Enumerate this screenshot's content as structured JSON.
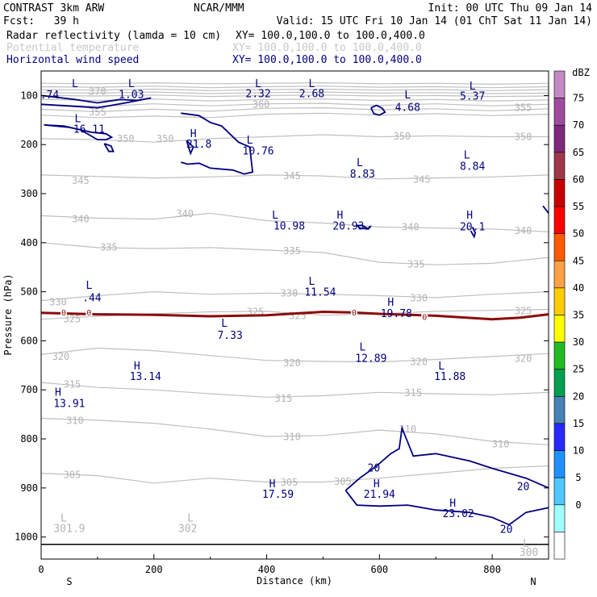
{
  "header": {
    "model": "CONTRAST  3km ARW",
    "org": "NCAR/MMM",
    "init": "Init: 00 UTC Thu 09 Jan 14",
    "fcst": "Fcst:   39 h",
    "valid": "Valid: 15 UTC Fri 10 Jan 14 (01 ChT Sat 11 Jan 14)"
  },
  "fields": [
    {
      "label": "Radar reflectivity (lamda = 10 cm)",
      "xy": "XY= 100.0,100.0 to 100.0,400.0",
      "color": "#000000"
    },
    {
      "label": "Potential temperature",
      "xy": "XY= 100.0,100.0 to 100.0,400.0",
      "color": "#b4b4b4"
    },
    {
      "label": "Horizontal wind speed",
      "xy": "XY= 100.0,100.0 to 100.0,400.0",
      "color": "#000080"
    }
  ],
  "chart_data": {
    "type": "cross-section",
    "xlabel": "Distance (km)",
    "ylabel": "Pressure (hPa)",
    "xlim": [
      0,
      900
    ],
    "ylim": [
      1045,
      50
    ],
    "x_ticks": [
      0,
      200,
      400,
      600,
      800
    ],
    "y_ticks": [
      100,
      200,
      300,
      400,
      500,
      600,
      700,
      800,
      900,
      1000
    ],
    "end_labels": {
      "left": "S",
      "right": "N"
    },
    "colorbar": {
      "unit": "dBZ",
      "levels": [
        75,
        70,
        65,
        60,
        55,
        50,
        45,
        40,
        35,
        30,
        25,
        20,
        15,
        10,
        5,
        0
      ],
      "colors": [
        "#c38ac3",
        "#a04ba0",
        "#7f2a7f",
        "#a0374b",
        "#c80000",
        "#ff0000",
        "#ff5a00",
        "#ffa046",
        "#ffcc00",
        "#ffff00",
        "#22bb22",
        "#00a050",
        "#4682b4",
        "#2828ff",
        "#1e90ff",
        "#50c8ff",
        "#a0ffff",
        "#ffffff"
      ]
    },
    "theta_labels": [
      {
        "text": "370",
        "x": 100,
        "p": 92
      },
      {
        "text": "360",
        "x": 390,
        "p": 118
      },
      {
        "text": "355",
        "x": 100,
        "p": 134
      },
      {
        "text": "355",
        "x": 855,
        "p": 125
      },
      {
        "text": "350",
        "x": 150,
        "p": 188
      },
      {
        "text": "350",
        "x": 220,
        "p": 188
      },
      {
        "text": "350",
        "x": 640,
        "p": 183
      },
      {
        "text": "350",
        "x": 855,
        "p": 184
      },
      {
        "text": "345",
        "x": 70,
        "p": 274
      },
      {
        "text": "345",
        "x": 445,
        "p": 264
      },
      {
        "text": "345",
        "x": 675,
        "p": 271
      },
      {
        "text": "340",
        "x": 70,
        "p": 352
      },
      {
        "text": "340",
        "x": 255,
        "p": 341
      },
      {
        "text": "340",
        "x": 655,
        "p": 368
      },
      {
        "text": "340",
        "x": 855,
        "p": 376
      },
      {
        "text": "335",
        "x": 120,
        "p": 409
      },
      {
        "text": "335",
        "x": 445,
        "p": 417
      },
      {
        "text": "335",
        "x": 665,
        "p": 444
      },
      {
        "text": "330",
        "x": 30,
        "p": 521
      },
      {
        "text": "330",
        "x": 440,
        "p": 503
      },
      {
        "text": "330",
        "x": 670,
        "p": 513
      },
      {
        "text": "325",
        "x": 55,
        "p": 556
      },
      {
        "text": "325",
        "x": 380,
        "p": 541
      },
      {
        "text": "325",
        "x": 455,
        "p": 549
      },
      {
        "text": "325",
        "x": 855,
        "p": 539
      },
      {
        "text": "320",
        "x": 35,
        "p": 632
      },
      {
        "text": "320",
        "x": 445,
        "p": 645
      },
      {
        "text": "320",
        "x": 670,
        "p": 643
      },
      {
        "text": "320",
        "x": 855,
        "p": 636
      },
      {
        "text": "315",
        "x": 55,
        "p": 689
      },
      {
        "text": "315",
        "x": 430,
        "p": 718
      },
      {
        "text": "315",
        "x": 660,
        "p": 706
      },
      {
        "text": "310",
        "x": 60,
        "p": 763
      },
      {
        "text": "310",
        "x": 445,
        "p": 796
      },
      {
        "text": "310",
        "x": 650,
        "p": 780
      },
      {
        "text": "310",
        "x": 815,
        "p": 811
      },
      {
        "text": "305",
        "x": 55,
        "p": 873
      },
      {
        "text": "305",
        "x": 440,
        "p": 889
      },
      {
        "text": "305",
        "x": 535,
        "p": 887
      }
    ],
    "theta_lines": [
      {
        "p": [
          75,
          76,
          74,
          76,
          75,
          74,
          76,
          75,
          77,
          75
        ]
      },
      {
        "p": [
          82,
          83,
          81,
          84,
          82,
          81,
          83,
          82,
          84,
          82
        ]
      },
      {
        "p": [
          88,
          89,
          87,
          90,
          88,
          87,
          89,
          88,
          90,
          88
        ]
      },
      {
        "p": [
          94,
          95,
          93,
          96,
          94,
          93,
          95,
          94,
          96,
          95
        ]
      },
      {
        "p": [
          100,
          101,
          99,
          102,
          100,
          99,
          101,
          100,
          102,
          101
        ]
      },
      {
        "p": [
          108,
          110,
          107,
          111,
          108,
          107,
          110,
          108,
          111,
          109
        ]
      },
      {
        "p": [
          118,
          122,
          117,
          121,
          117,
          116,
          120,
          117,
          121,
          118
        ]
      },
      {
        "p": [
          128,
          133,
          128,
          132,
          126,
          125,
          129,
          127,
          131,
          127
        ]
      },
      {
        "p": [
          140,
          145,
          142,
          145,
          138,
          136,
          140,
          137,
          141,
          138
        ]
      },
      {
        "p": [
          188,
          190,
          195,
          188,
          184,
          180,
          184,
          182,
          184,
          184
        ]
      },
      {
        "p": [
          262,
          265,
          268,
          266,
          262,
          264,
          270,
          268,
          266,
          262
        ]
      },
      {
        "p": [
          345,
          350,
          352,
          340,
          355,
          360,
          368,
          370,
          372,
          378
        ]
      },
      {
        "p": [
          400,
          410,
          412,
          410,
          415,
          420,
          440,
          445,
          442,
          430
        ]
      },
      {
        "p": [
          518,
          508,
          500,
          505,
          503,
          505,
          508,
          512,
          505,
          500
        ]
      },
      {
        "p": [
          556,
          550,
          545,
          541,
          540,
          548,
          545,
          540,
          538,
          536
        ]
      },
      {
        "p": [
          628,
          615,
          620,
          630,
          640,
          642,
          643,
          638,
          632,
          626
        ]
      },
      {
        "p": [
          685,
          695,
          700,
          708,
          715,
          712,
          705,
          708,
          710,
          705
        ]
      },
      {
        "p": [
          758,
          762,
          768,
          780,
          795,
          793,
          782,
          790,
          805,
          812
        ]
      },
      {
        "p": [
          870,
          875,
          890,
          880,
          888,
          888,
          880,
          870,
          860,
          855
        ]
      }
    ],
    "wind_labels": [
      {
        "text": ".74",
        "x": 15,
        "p": 98
      },
      {
        "text": "1.03",
        "x": 160,
        "p": 97
      },
      {
        "text": "2.32",
        "x": 385,
        "p": 95
      },
      {
        "text": "2.68",
        "x": 480,
        "p": 95
      },
      {
        "text": "4.68",
        "x": 650,
        "p": 123
      },
      {
        "text": "5.37",
        "x": 765,
        "p": 100
      },
      {
        "text": "16.11",
        "x": 85,
        "p": 168
      },
      {
        "text": "21.8",
        "x": 280,
        "p": 198
      },
      {
        "text": "10.76",
        "x": 385,
        "p": 212
      },
      {
        "text": "8.83",
        "x": 570,
        "p": 259
      },
      {
        "text": "8.84",
        "x": 765,
        "p": 243
      },
      {
        "text": "10.98",
        "x": 440,
        "p": 365
      },
      {
        "text": "20.93",
        "x": 545,
        "p": 365
      },
      {
        "text": "20.1",
        "x": 765,
        "p": 367
      },
      {
        "text": ".44",
        "x": 90,
        "p": 511
      },
      {
        "text": "11.54",
        "x": 495,
        "p": 500
      },
      {
        "text": "19.78",
        "x": 630,
        "p": 543
      },
      {
        "text": "7.33",
        "x": 335,
        "p": 588
      },
      {
        "text": "12.89",
        "x": 585,
        "p": 635
      },
      {
        "text": "13.14",
        "x": 185,
        "p": 672
      },
      {
        "text": "11.88",
        "x": 725,
        "p": 672
      },
      {
        "text": "13.91",
        "x": 50,
        "p": 727
      },
      {
        "text": "17.59",
        "x": 420,
        "p": 912
      },
      {
        "text": "21.94",
        "x": 600,
        "p": 912
      },
      {
        "text": "23.02",
        "x": 740,
        "p": 951
      },
      {
        "text": "20",
        "x": 590,
        "p": 858
      },
      {
        "text": "20",
        "x": 855,
        "p": 896
      },
      {
        "text": "20",
        "x": 825,
        "p": 983
      }
    ],
    "hl_marks": [
      {
        "text": "L",
        "x": 60,
        "p": 75
      },
      {
        "text": "L",
        "x": 160,
        "p": 75
      },
      {
        "text": "L",
        "x": 385,
        "p": 75
      },
      {
        "text": "L",
        "x": 480,
        "p": 75
      },
      {
        "text": "L",
        "x": 650,
        "p": 98
      },
      {
        "text": "L",
        "x": 765,
        "p": 80
      },
      {
        "text": "L",
        "x": 65,
        "p": 146
      },
      {
        "text": "H",
        "x": 270,
        "p": 177
      },
      {
        "text": "L",
        "x": 370,
        "p": 190
      },
      {
        "text": "L",
        "x": 565,
        "p": 236
      },
      {
        "text": "L",
        "x": 755,
        "p": 220
      },
      {
        "text": "L",
        "x": 415,
        "p": 343
      },
      {
        "text": "H",
        "x": 530,
        "p": 343
      },
      {
        "text": "H",
        "x": 760,
        "p": 343
      },
      {
        "text": "L",
        "x": 85,
        "p": 486
      },
      {
        "text": "L",
        "x": 480,
        "p": 478
      },
      {
        "text": "H",
        "x": 620,
        "p": 520
      },
      {
        "text": "L",
        "x": 325,
        "p": 563
      },
      {
        "text": "L",
        "x": 570,
        "p": 612
      },
      {
        "text": "H",
        "x": 170,
        "p": 650
      },
      {
        "text": "L",
        "x": 710,
        "p": 650
      },
      {
        "text": "H",
        "x": 30,
        "p": 704
      },
      {
        "text": "H",
        "x": 410,
        "p": 890
      },
      {
        "text": "H",
        "x": 595,
        "p": 890
      },
      {
        "text": "H",
        "x": 730,
        "p": 930
      },
      {
        "text": "L",
        "x": 40,
        "p": 960
      },
      {
        "text": "L",
        "x": 265,
        "p": 960
      },
      {
        "text": "L",
        "x": 860,
        "p": 1012
      }
    ],
    "bottom_labels": [
      {
        "text": "301.9",
        "x": 50,
        "p": 982
      },
      {
        "text": "302",
        "x": 260,
        "p": 982
      },
      {
        "text": "300",
        "x": 865,
        "p": 1030
      }
    ],
    "zero_labels": [
      {
        "text": "0",
        "x": 40,
        "p": 542
      },
      {
        "text": "0",
        "x": 85,
        "p": 542
      },
      {
        "text": "0",
        "x": 555,
        "p": 542
      },
      {
        "text": "0",
        "x": 680,
        "p": 551
      }
    ],
    "zero_line": {
      "x": [
        0,
        100,
        200,
        300,
        400,
        500,
        550,
        600,
        700,
        800,
        850,
        900
      ],
      "p": [
        543,
        546,
        547,
        550,
        548,
        541,
        542,
        545,
        549,
        556,
        553,
        546
      ]
    },
    "surface_p": 1015,
    "wind_contours": [
      {
        "x": [
          0,
          60,
          100,
          140,
          170,
          195,
          150,
          100,
          60,
          0
        ],
        "p": [
          100,
          108,
          115,
          108,
          110,
          105,
          115,
          125,
          122,
          118
        ]
      },
      {
        "x": [
          5,
          40,
          70,
          100,
          115,
          125,
          115,
          90,
          50,
          5
        ],
        "p": [
          160,
          162,
          170,
          190,
          190,
          185,
          178,
          175,
          165,
          160
        ]
      },
      {
        "x": [
          112,
          124,
          128,
          120,
          112
        ],
        "p": [
          198,
          203,
          214,
          214,
          198
        ]
      },
      {
        "x": [
          248,
          280,
          300,
          320,
          350,
          370,
          375,
          360,
          340,
          300,
          280,
          260,
          248
        ],
        "p": [
          136,
          141,
          155,
          162,
          195,
          205,
          256,
          260,
          252,
          248,
          238,
          240,
          236
        ]
      },
      {
        "x": [
          258,
          270,
          265,
          258
        ],
        "p": [
          192,
          205,
          218,
          192
        ]
      },
      {
        "x": [
          585,
          595,
          605,
          610,
          600,
          590,
          585
        ],
        "p": [
          125,
          120,
          126,
          134,
          140,
          137,
          125
        ]
      },
      {
        "x": [
          560,
          570,
          580,
          585,
          578,
          565,
          560
        ],
        "p": [
          365,
          365,
          372,
          366,
          372,
          370,
          365
        ]
      },
      {
        "x": [
          765,
          770,
          768,
          762
        ],
        "p": [
          368,
          380,
          388,
          376
        ]
      },
      {
        "x": [
          890,
          900
        ],
        "p": [
          325,
          340
        ]
      },
      {
        "x": [
          540,
          565,
          595,
          620,
          635,
          640,
          660,
          700,
          760,
          800,
          860,
          900
        ],
        "p": [
          905,
          880,
          855,
          830,
          820,
          778,
          835,
          830,
          845,
          860,
          880,
          900
        ]
      },
      {
        "x": [
          540,
          560,
          600,
          650,
          700,
          760,
          800,
          830,
          860,
          900
        ],
        "p": [
          905,
          935,
          937,
          935,
          945,
          950,
          960,
          975,
          950,
          940
        ]
      }
    ]
  }
}
